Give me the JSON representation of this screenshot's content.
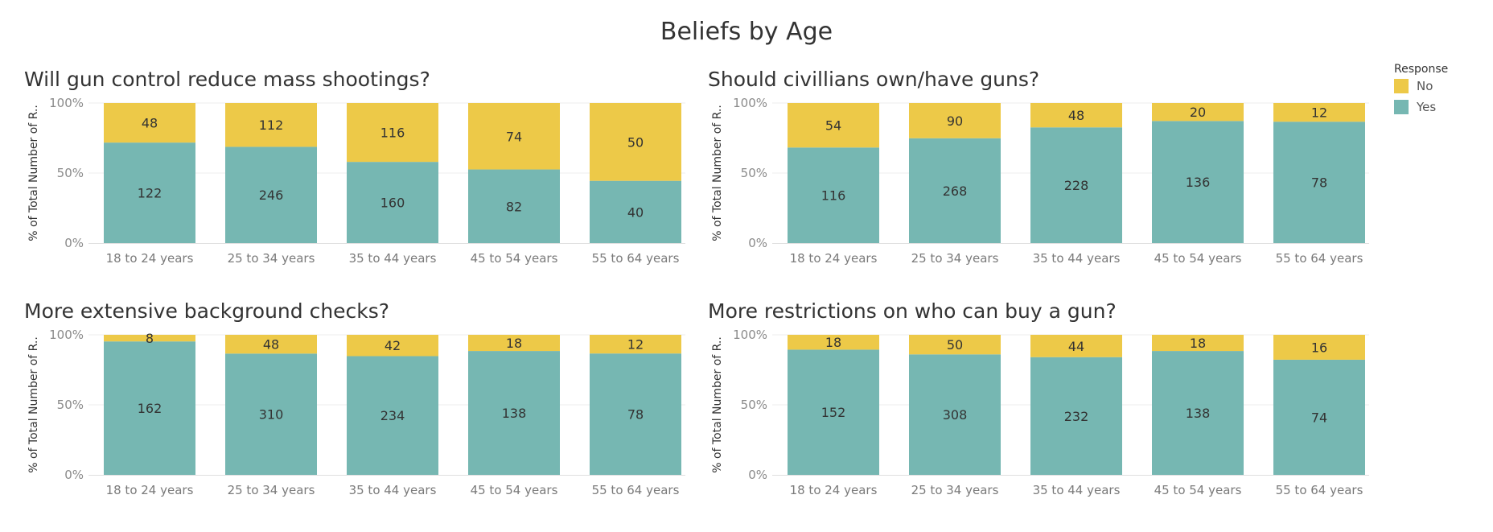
{
  "title": "Beliefs by Age",
  "legend": {
    "title": "Response",
    "items": [
      {
        "label": "No",
        "color": "#EDC948"
      },
      {
        "label": "Yes",
        "color": "#76B7B2"
      }
    ]
  },
  "chart_data": [
    {
      "type": "bar",
      "stacked": true,
      "normalized": true,
      "title": "Will gun control reduce mass shootings?",
      "ylabel": "% of Total Number of R..",
      "yticks": [
        "0%",
        "50%",
        "100%"
      ],
      "categories": [
        "18 to 24 years",
        "25 to 34 years",
        "35 to 44 years",
        "45 to 54 years",
        "55 to 64 years"
      ],
      "series": [
        {
          "name": "Yes",
          "values": [
            122,
            246,
            160,
            82,
            40
          ]
        },
        {
          "name": "No",
          "values": [
            48,
            112,
            116,
            74,
            50
          ]
        }
      ]
    },
    {
      "type": "bar",
      "stacked": true,
      "normalized": true,
      "title": "Should civillians own/have guns?",
      "ylabel": "% of Total Number of R..",
      "yticks": [
        "0%",
        "50%",
        "100%"
      ],
      "categories": [
        "18 to 24 years",
        "25 to 34 years",
        "35 to 44 years",
        "45 to 54 years",
        "55 to 64 years"
      ],
      "series": [
        {
          "name": "Yes",
          "values": [
            116,
            268,
            228,
            136,
            78
          ]
        },
        {
          "name": "No",
          "values": [
            54,
            90,
            48,
            20,
            12
          ]
        }
      ]
    },
    {
      "type": "bar",
      "stacked": true,
      "normalized": true,
      "title": "More extensive background checks?",
      "ylabel": "% of Total Number of R..",
      "yticks": [
        "0%",
        "50%",
        "100%"
      ],
      "categories": [
        "18 to 24 years",
        "25 to 34 years",
        "35 to 44 years",
        "45 to 54 years",
        "55 to 64 years"
      ],
      "series": [
        {
          "name": "Yes",
          "values": [
            162,
            310,
            234,
            138,
            78
          ]
        },
        {
          "name": "No",
          "values": [
            8,
            48,
            42,
            18,
            12
          ]
        }
      ]
    },
    {
      "type": "bar",
      "stacked": true,
      "normalized": true,
      "title": "More restrictions on who can buy a gun?",
      "ylabel": "% of Total Number of R..",
      "yticks": [
        "0%",
        "50%",
        "100%"
      ],
      "categories": [
        "18 to 24 years",
        "25 to 34 years",
        "35 to 44 years",
        "45 to 54 years",
        "55 to 64 years"
      ],
      "series": [
        {
          "name": "Yes",
          "values": [
            152,
            308,
            232,
            138,
            74
          ]
        },
        {
          "name": "No",
          "values": [
            18,
            50,
            44,
            18,
            16
          ]
        }
      ]
    }
  ]
}
